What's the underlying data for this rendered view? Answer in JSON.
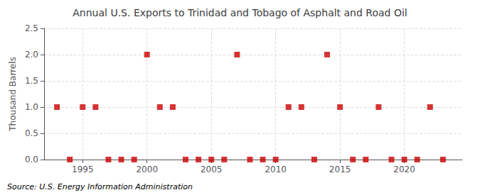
{
  "chart_data": {
    "type": "scatter",
    "title": "Annual U.S. Exports to Trinidad and Tobago of Asphalt and Road Oil",
    "ylabel": "Thousand Barrels",
    "annotation": "Source: U.S. Energy Information Administration",
    "x": [
      1993,
      1994,
      1995,
      1996,
      1997,
      1998,
      1999,
      2000,
      2001,
      2002,
      2003,
      2004,
      2005,
      2006,
      2007,
      2008,
      2009,
      2010,
      2011,
      2012,
      2013,
      2014,
      2015,
      2016,
      2017,
      2018,
      2019,
      2020,
      2021,
      2022,
      2023
    ],
    "values": [
      1,
      0,
      1,
      1,
      0,
      0,
      0,
      2,
      1,
      1,
      0,
      0,
      0,
      0,
      2,
      0,
      0,
      0,
      1,
      1,
      0,
      2,
      1,
      0,
      0,
      1,
      0,
      0,
      0,
      1,
      0
    ],
    "color": "#cc0000",
    "marker": "square",
    "xlim": [
      1992,
      2024.5
    ],
    "xticks": [
      1995,
      2000,
      2005,
      2010,
      2015,
      2020
    ],
    "ylim": [
      0,
      2.5
    ],
    "yticks": [
      {
        "value": 0.0,
        "label": "0.0"
      },
      0.5,
      {
        "value": 1.0,
        "label": "1.0"
      },
      1.5,
      {
        "value": 2.0,
        "label": "2.0"
      },
      2.5
    ],
    "grid": true
  }
}
